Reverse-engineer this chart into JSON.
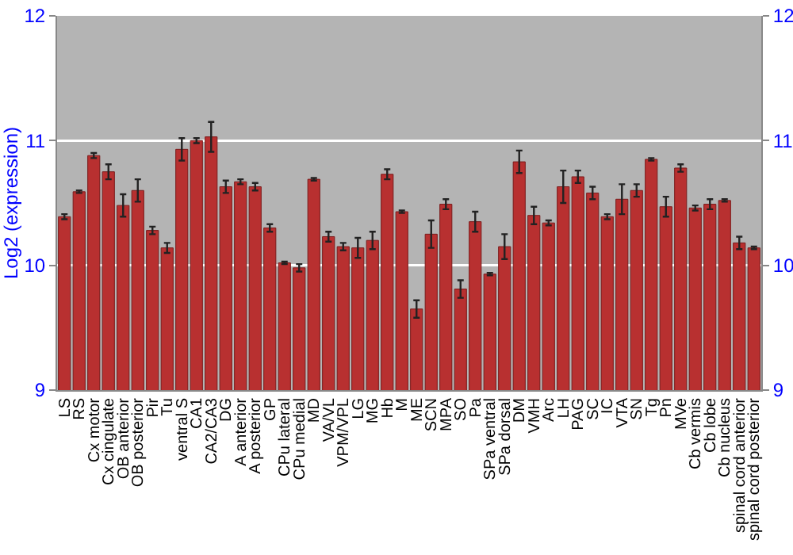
{
  "chart_data": {
    "type": "bar",
    "ylabel": "Log2 (expression)",
    "categories": [
      "LS",
      "RS",
      "Cx motor",
      "Cx cingulate",
      "OB anterior",
      "OB posterior",
      "Pir",
      "Tu",
      "ventral S",
      "CA1",
      "CA2/CA3",
      "DG",
      "A anterior",
      "A posterior",
      "GP",
      "CPu lateral",
      "CPu medial",
      "MD",
      "VA/VL",
      "VPM/VPL",
      "LG",
      "MG",
      "Hb",
      "M",
      "ME",
      "SCN",
      "MPA",
      "SO",
      "Pa",
      "SPa ventral",
      "SPa dorsal",
      "DM",
      "VMH",
      "Arc",
      "LH",
      "PAG",
      "SC",
      "IC",
      "VTA",
      "SN",
      "Tg",
      "Pn",
      "MVe",
      "Cb vermis",
      "Cb lobe",
      "Cb nucleus",
      "spinal cord anterior",
      "spinal cord posterior"
    ],
    "values": [
      10.39,
      10.59,
      10.88,
      10.75,
      10.48,
      10.6,
      10.28,
      10.14,
      10.93,
      11.0,
      11.03,
      10.63,
      10.67,
      10.63,
      10.3,
      10.02,
      9.98,
      10.69,
      10.23,
      10.15,
      10.14,
      10.2,
      10.73,
      10.43,
      9.65,
      10.25,
      10.49,
      9.81,
      10.35,
      9.93,
      10.15,
      10.83,
      10.4,
      10.34,
      10.63,
      10.71,
      10.58,
      10.39,
      10.53,
      10.6,
      10.85,
      10.47,
      10.78,
      10.46,
      10.49,
      10.52,
      10.18,
      10.14
    ],
    "errors": [
      0.02,
      0.01,
      0.02,
      0.06,
      0.09,
      0.09,
      0.03,
      0.04,
      0.09,
      0.02,
      0.12,
      0.05,
      0.02,
      0.03,
      0.03,
      0.01,
      0.03,
      0.01,
      0.04,
      0.03,
      0.08,
      0.07,
      0.04,
      0.01,
      0.07,
      0.11,
      0.04,
      0.07,
      0.08,
      0.01,
      0.1,
      0.09,
      0.07,
      0.02,
      0.13,
      0.05,
      0.05,
      0.02,
      0.12,
      0.05,
      0.01,
      0.08,
      0.03,
      0.02,
      0.04,
      0.01,
      0.05,
      0.01
    ],
    "color": "#b83030",
    "ylim": [
      9,
      12
    ],
    "yticks": [
      9,
      10,
      11,
      12
    ],
    "y2lim": [
      9,
      12
    ],
    "y2ticks": [
      9,
      10,
      11,
      12
    ],
    "grid": "y"
  }
}
